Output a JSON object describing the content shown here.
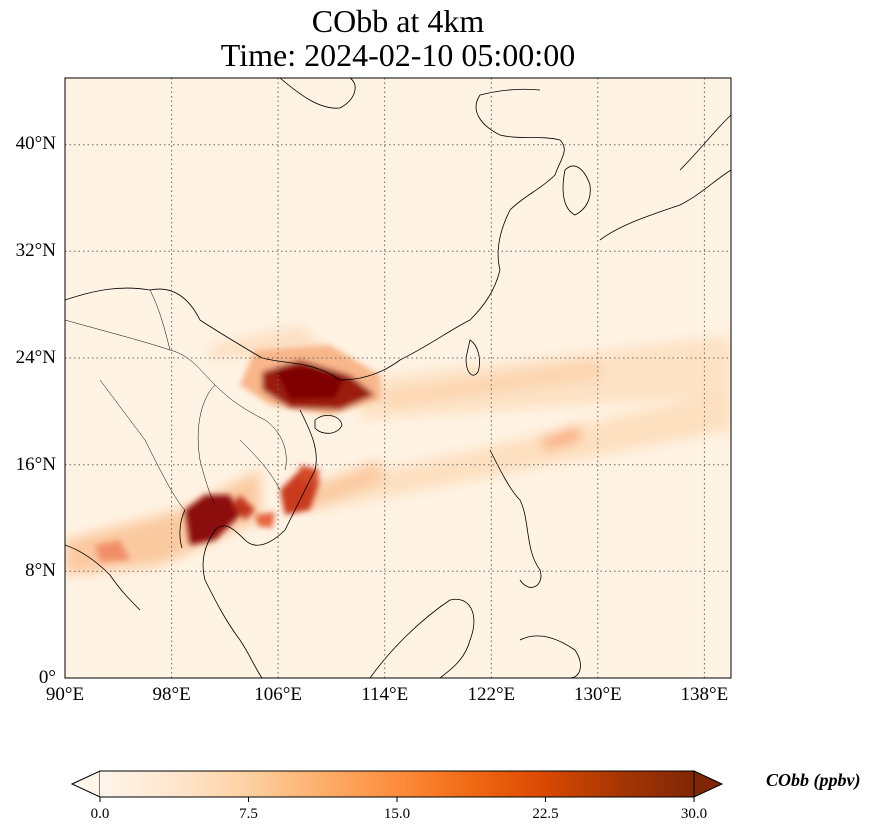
{
  "title": {
    "line1": "CObb at 4km",
    "line2": "Time: 2024-02-10 05:00:00"
  },
  "map": {
    "variable": "CObb",
    "level": "4km",
    "time": "2024-02-10 05:00:00",
    "lon_range": [
      90,
      140
    ],
    "lat_range": [
      0,
      45
    ],
    "lat_ticks": [
      "40°N",
      "32°N",
      "24°N",
      "16°N",
      "8°N",
      "0°"
    ],
    "lon_ticks": [
      "90°E",
      "98°E",
      "106°E",
      "114°E",
      "122°E",
      "130°E",
      "138°E"
    ],
    "gridlines": true
  },
  "colorbar": {
    "label": "CObb (ppbv)",
    "ticks": [
      "0.0",
      "7.5",
      "15.0",
      "22.5",
      "30.0"
    ],
    "min": 0,
    "max": 30,
    "extend": "both",
    "colormap": [
      "#fff5eb",
      "#fee6ce",
      "#fdd0a2",
      "#fdae6b",
      "#fd8d3c",
      "#f16913",
      "#d94801",
      "#a63603",
      "#7f2704"
    ]
  }
}
